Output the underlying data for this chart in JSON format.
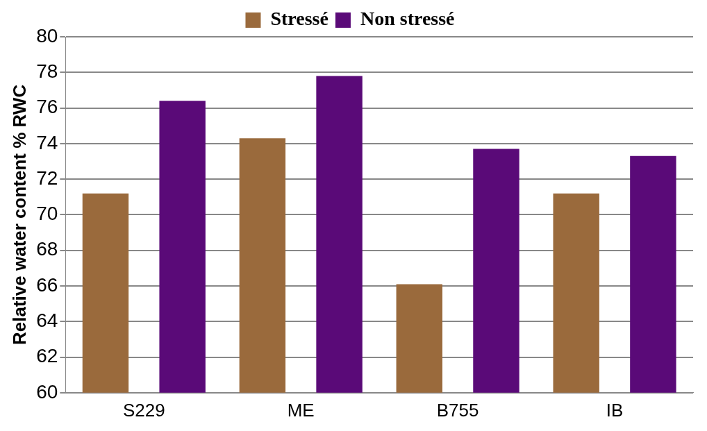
{
  "chart_data": {
    "type": "bar",
    "ylabel": "Relative water content % RWC",
    "categories": [
      "S229",
      "ME",
      "B755",
      "IB"
    ],
    "series": [
      {
        "name": "Stressé",
        "color": "#9a6a3c",
        "values": [
          71.2,
          74.3,
          66.1,
          71.2
        ]
      },
      {
        "name": "Non stressé",
        "color": "#5a0a78",
        "values": [
          76.4,
          77.8,
          73.7,
          73.3
        ]
      }
    ],
    "ylim": [
      60,
      80
    ],
    "yticks": [
      60,
      62,
      64,
      66,
      68,
      70,
      72,
      74,
      76,
      78,
      80
    ],
    "grid": "y",
    "legend": "top"
  }
}
